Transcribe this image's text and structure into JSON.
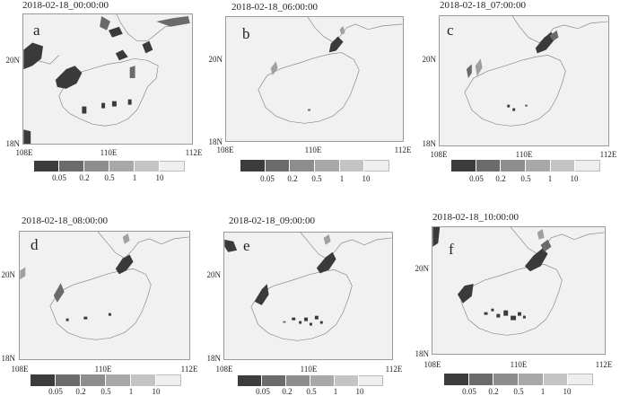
{
  "panels": [
    {
      "title": "2018-02-18_00:00:00",
      "label": "a"
    },
    {
      "title": "2018-02-18_06:00:00",
      "label": "b"
    },
    {
      "title": "2018-02-18_07:00:00",
      "label": "c"
    },
    {
      "title": "2018-02-18_08:00:00",
      "label": "d"
    },
    {
      "title": "2018-02-18_09:00:00",
      "label": "e"
    },
    {
      "title": "2018-02-18_10:00:00",
      "label": "f"
    }
  ],
  "axes": {
    "lat_labels": [
      "20N",
      "18N"
    ],
    "lon_labels": [
      "108E",
      "110E",
      "112E"
    ]
  },
  "colorbar": {
    "levels": [
      "0.05",
      "0.2",
      "0.5",
      "1",
      "10"
    ],
    "colors": [
      "#3c3c3c",
      "#6b6b6b",
      "#8d8d8d",
      "#a8a8a8",
      "#c4c4c4",
      "#eeeeee"
    ]
  },
  "map_colors": {
    "background": "#f1f1f1",
    "coastline": "#8a8a8a",
    "precip_dark": "#3a3a3a",
    "precip_mid": "#6a6a6a",
    "precip_light": "#a0a0a0"
  }
}
